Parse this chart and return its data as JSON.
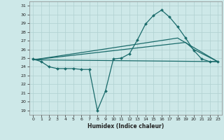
{
  "xlabel": "Humidex (Indice chaleur)",
  "xlim": [
    -0.5,
    23.5
  ],
  "ylim": [
    18.5,
    31.5
  ],
  "xticks": [
    0,
    1,
    2,
    3,
    4,
    5,
    6,
    7,
    8,
    9,
    10,
    11,
    12,
    13,
    14,
    15,
    16,
    17,
    18,
    19,
    20,
    21,
    22,
    23
  ],
  "yticks": [
    19,
    20,
    21,
    22,
    23,
    24,
    25,
    26,
    27,
    28,
    29,
    30,
    31
  ],
  "bg_color": "#cde8e8",
  "line_color": "#1a6b6b",
  "series": [
    {
      "x": [
        0,
        1,
        2,
        3,
        4,
        5,
        6,
        7,
        8,
        9,
        10,
        11,
        12,
        13,
        14,
        15,
        16,
        17,
        18,
        19,
        20,
        21,
        22,
        23
      ],
      "y": [
        24.9,
        24.6,
        24.0,
        23.8,
        23.8,
        23.8,
        23.7,
        23.7,
        19.0,
        21.2,
        24.9,
        25.0,
        25.5,
        27.1,
        28.9,
        29.9,
        30.5,
        29.7,
        28.6,
        27.3,
        25.9,
        24.9,
        24.6,
        24.6
      ]
    },
    {
      "x": [
        0,
        23
      ],
      "y": [
        24.8,
        24.6
      ]
    },
    {
      "x": [
        0,
        18,
        23
      ],
      "y": [
        24.8,
        27.3,
        24.6
      ]
    },
    {
      "x": [
        0,
        19,
        20,
        23
      ],
      "y": [
        24.8,
        26.8,
        26.0,
        24.6
      ]
    }
  ]
}
